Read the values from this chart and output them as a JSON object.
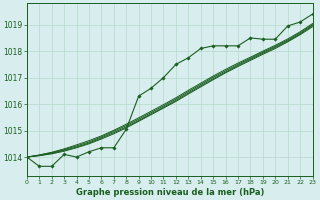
{
  "bg_color": "#d8eeee",
  "grid_color": "#b8d8cc",
  "line_color": "#1a5e20",
  "xlabel": "Graphe pression niveau de la mer (hPa)",
  "xlim": [
    0,
    23
  ],
  "ylim": [
    1013.3,
    1019.8
  ],
  "yticks": [
    1014,
    1015,
    1016,
    1017,
    1018,
    1019
  ],
  "xticks": [
    0,
    1,
    2,
    3,
    4,
    5,
    6,
    7,
    8,
    9,
    10,
    11,
    12,
    13,
    14,
    15,
    16,
    17,
    18,
    19,
    20,
    21,
    22,
    23
  ],
  "hours": [
    0,
    1,
    2,
    3,
    4,
    5,
    6,
    7,
    8,
    9,
    10,
    11,
    12,
    13,
    14,
    15,
    16,
    17,
    18,
    19,
    20,
    21,
    22,
    23
  ],
  "main_line": [
    1014.0,
    1013.65,
    1013.65,
    1014.1,
    1014.0,
    1014.2,
    1014.35,
    1014.35,
    1015.05,
    1016.3,
    1016.6,
    1017.0,
    1017.5,
    1017.75,
    1018.1,
    1018.2,
    1018.2,
    1018.2,
    1018.5,
    1018.45,
    1018.45,
    1018.95,
    1019.1,
    1019.4
  ],
  "linear1": [
    1014.0,
    1014.05,
    1014.12,
    1014.22,
    1014.35,
    1014.5,
    1014.68,
    1014.88,
    1015.1,
    1015.35,
    1015.6,
    1015.85,
    1016.1,
    1016.38,
    1016.65,
    1016.92,
    1017.18,
    1017.42,
    1017.65,
    1017.88,
    1018.1,
    1018.35,
    1018.62,
    1018.92
  ],
  "linear2": [
    1014.0,
    1014.06,
    1014.14,
    1014.25,
    1014.38,
    1014.53,
    1014.72,
    1014.92,
    1015.14,
    1015.38,
    1015.63,
    1015.88,
    1016.14,
    1016.42,
    1016.69,
    1016.96,
    1017.21,
    1017.46,
    1017.69,
    1017.92,
    1018.14,
    1018.38,
    1018.65,
    1018.96
  ],
  "linear3": [
    1014.0,
    1014.07,
    1014.16,
    1014.28,
    1014.42,
    1014.57,
    1014.76,
    1014.97,
    1015.19,
    1015.43,
    1015.68,
    1015.93,
    1016.19,
    1016.47,
    1016.74,
    1017.01,
    1017.26,
    1017.5,
    1017.73,
    1017.96,
    1018.18,
    1018.42,
    1018.69,
    1019.0
  ],
  "linear4": [
    1014.0,
    1014.08,
    1014.18,
    1014.31,
    1014.46,
    1014.62,
    1014.8,
    1015.01,
    1015.24,
    1015.48,
    1015.73,
    1015.98,
    1016.24,
    1016.52,
    1016.79,
    1017.06,
    1017.31,
    1017.55,
    1017.77,
    1018.0,
    1018.22,
    1018.46,
    1018.73,
    1019.04
  ]
}
